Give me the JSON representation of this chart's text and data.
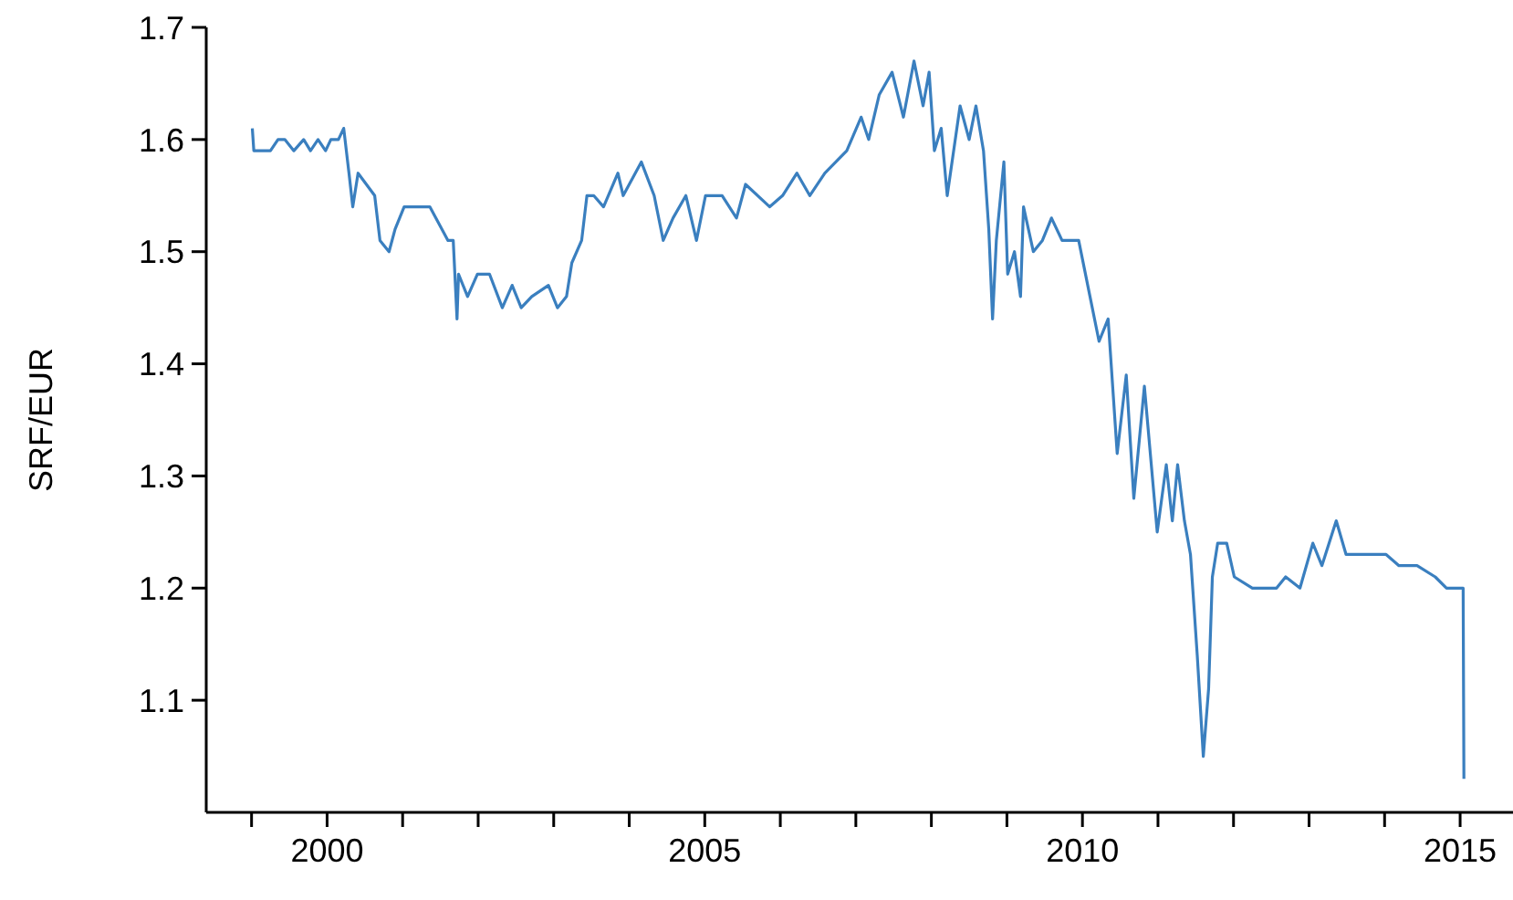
{
  "chart_data": {
    "type": "line",
    "ylabel": "SRF/EUR",
    "xlim": [
      1998.4,
      2015.7
    ],
    "ylim": [
      1.0,
      1.7
    ],
    "xticks": [
      {
        "value": 1999,
        "label": null
      },
      2000,
      {
        "value": 2001,
        "label": null
      },
      {
        "value": 2002,
        "label": null
      },
      {
        "value": 2003,
        "label": null
      },
      {
        "value": 2004,
        "label": null
      },
      2005,
      {
        "value": 2006,
        "label": null
      },
      {
        "value": 2007,
        "label": null
      },
      {
        "value": 2008,
        "label": null
      },
      {
        "value": 2009,
        "label": null
      },
      2010,
      {
        "value": 2011,
        "label": null
      },
      {
        "value": 2012,
        "label": null
      },
      {
        "value": 2013,
        "label": null
      },
      {
        "value": 2014,
        "label": null
      },
      2015
    ],
    "yticks": [
      1.1,
      1.2,
      1.3,
      1.4,
      1.5,
      1.6,
      1.7
    ],
    "x": [
      1999.01,
      1999.03,
      1999.15,
      1999.25,
      1999.35,
      1999.44,
      1999.56,
      1999.69,
      1999.78,
      1999.88,
      1999.98,
      2000.05,
      2000.15,
      2000.22,
      2000.29,
      2000.34,
      2000.41,
      2000.63,
      2000.7,
      2000.82,
      2000.9,
      2001.02,
      2001.36,
      2001.6,
      2001.67,
      2001.72,
      2001.74,
      2001.86,
      2001.99,
      2002.15,
      2002.32,
      2002.45,
      2002.57,
      2002.71,
      2002.93,
      2003.05,
      2003.17,
      2003.24,
      2003.37,
      2003.44,
      2003.53,
      2003.66,
      2003.85,
      2003.92,
      2004.16,
      2004.33,
      2004.45,
      2004.58,
      2004.75,
      2004.89,
      2005.01,
      2005.23,
      2005.42,
      2005.54,
      2005.86,
      2006.03,
      2006.22,
      2006.39,
      2006.59,
      2006.88,
      2007.07,
      2007.17,
      2007.31,
      2007.48,
      2007.63,
      2007.77,
      2007.89,
      2007.97,
      2008.04,
      2008.13,
      2008.21,
      2008.38,
      2008.5,
      2008.59,
      2008.69,
      2008.76,
      2008.81,
      2008.86,
      2008.96,
      2009.01,
      2009.1,
      2009.18,
      2009.22,
      2009.35,
      2009.47,
      2009.59,
      2009.73,
      2009.95,
      2010.1,
      2010.22,
      2010.34,
      2010.46,
      2010.58,
      2010.68,
      2010.82,
      2010.99,
      2011.11,
      2011.19,
      2011.26,
      2011.35,
      2011.43,
      2011.52,
      2011.6,
      2011.67,
      2011.72,
      2011.79,
      2011.91,
      2012.01,
      2012.25,
      2012.57,
      2012.69,
      2012.88,
      2013.05,
      2013.17,
      2013.36,
      2013.49,
      2013.7,
      2014.02,
      2014.19,
      2014.43,
      2014.67,
      2014.82,
      2015.04,
      2015.05
    ],
    "series": [
      {
        "color": "#3a7fbf",
        "values": [
          1.61,
          1.59,
          1.59,
          1.59,
          1.6,
          1.6,
          1.59,
          1.6,
          1.59,
          1.6,
          1.59,
          1.6,
          1.6,
          1.61,
          1.57,
          1.54,
          1.57,
          1.55,
          1.51,
          1.5,
          1.52,
          1.54,
          1.54,
          1.51,
          1.51,
          1.44,
          1.48,
          1.46,
          1.48,
          1.48,
          1.45,
          1.47,
          1.45,
          1.46,
          1.47,
          1.45,
          1.46,
          1.49,
          1.51,
          1.55,
          1.55,
          1.54,
          1.57,
          1.55,
          1.58,
          1.55,
          1.51,
          1.53,
          1.55,
          1.51,
          1.55,
          1.55,
          1.53,
          1.56,
          1.54,
          1.55,
          1.57,
          1.55,
          1.57,
          1.59,
          1.62,
          1.6,
          1.64,
          1.66,
          1.62,
          1.67,
          1.63,
          1.66,
          1.59,
          1.61,
          1.55,
          1.63,
          1.6,
          1.63,
          1.59,
          1.52,
          1.44,
          1.51,
          1.58,
          1.48,
          1.5,
          1.46,
          1.54,
          1.5,
          1.51,
          1.53,
          1.51,
          1.51,
          1.46,
          1.42,
          1.44,
          1.32,
          1.39,
          1.28,
          1.38,
          1.25,
          1.31,
          1.26,
          1.31,
          1.26,
          1.23,
          1.14,
          1.05,
          1.11,
          1.21,
          1.24,
          1.24,
          1.21,
          1.2,
          1.2,
          1.21,
          1.2,
          1.24,
          1.22,
          1.26,
          1.23,
          1.23,
          1.23,
          1.22,
          1.22,
          1.21,
          1.2,
          1.2,
          1.03
        ]
      }
    ]
  }
}
